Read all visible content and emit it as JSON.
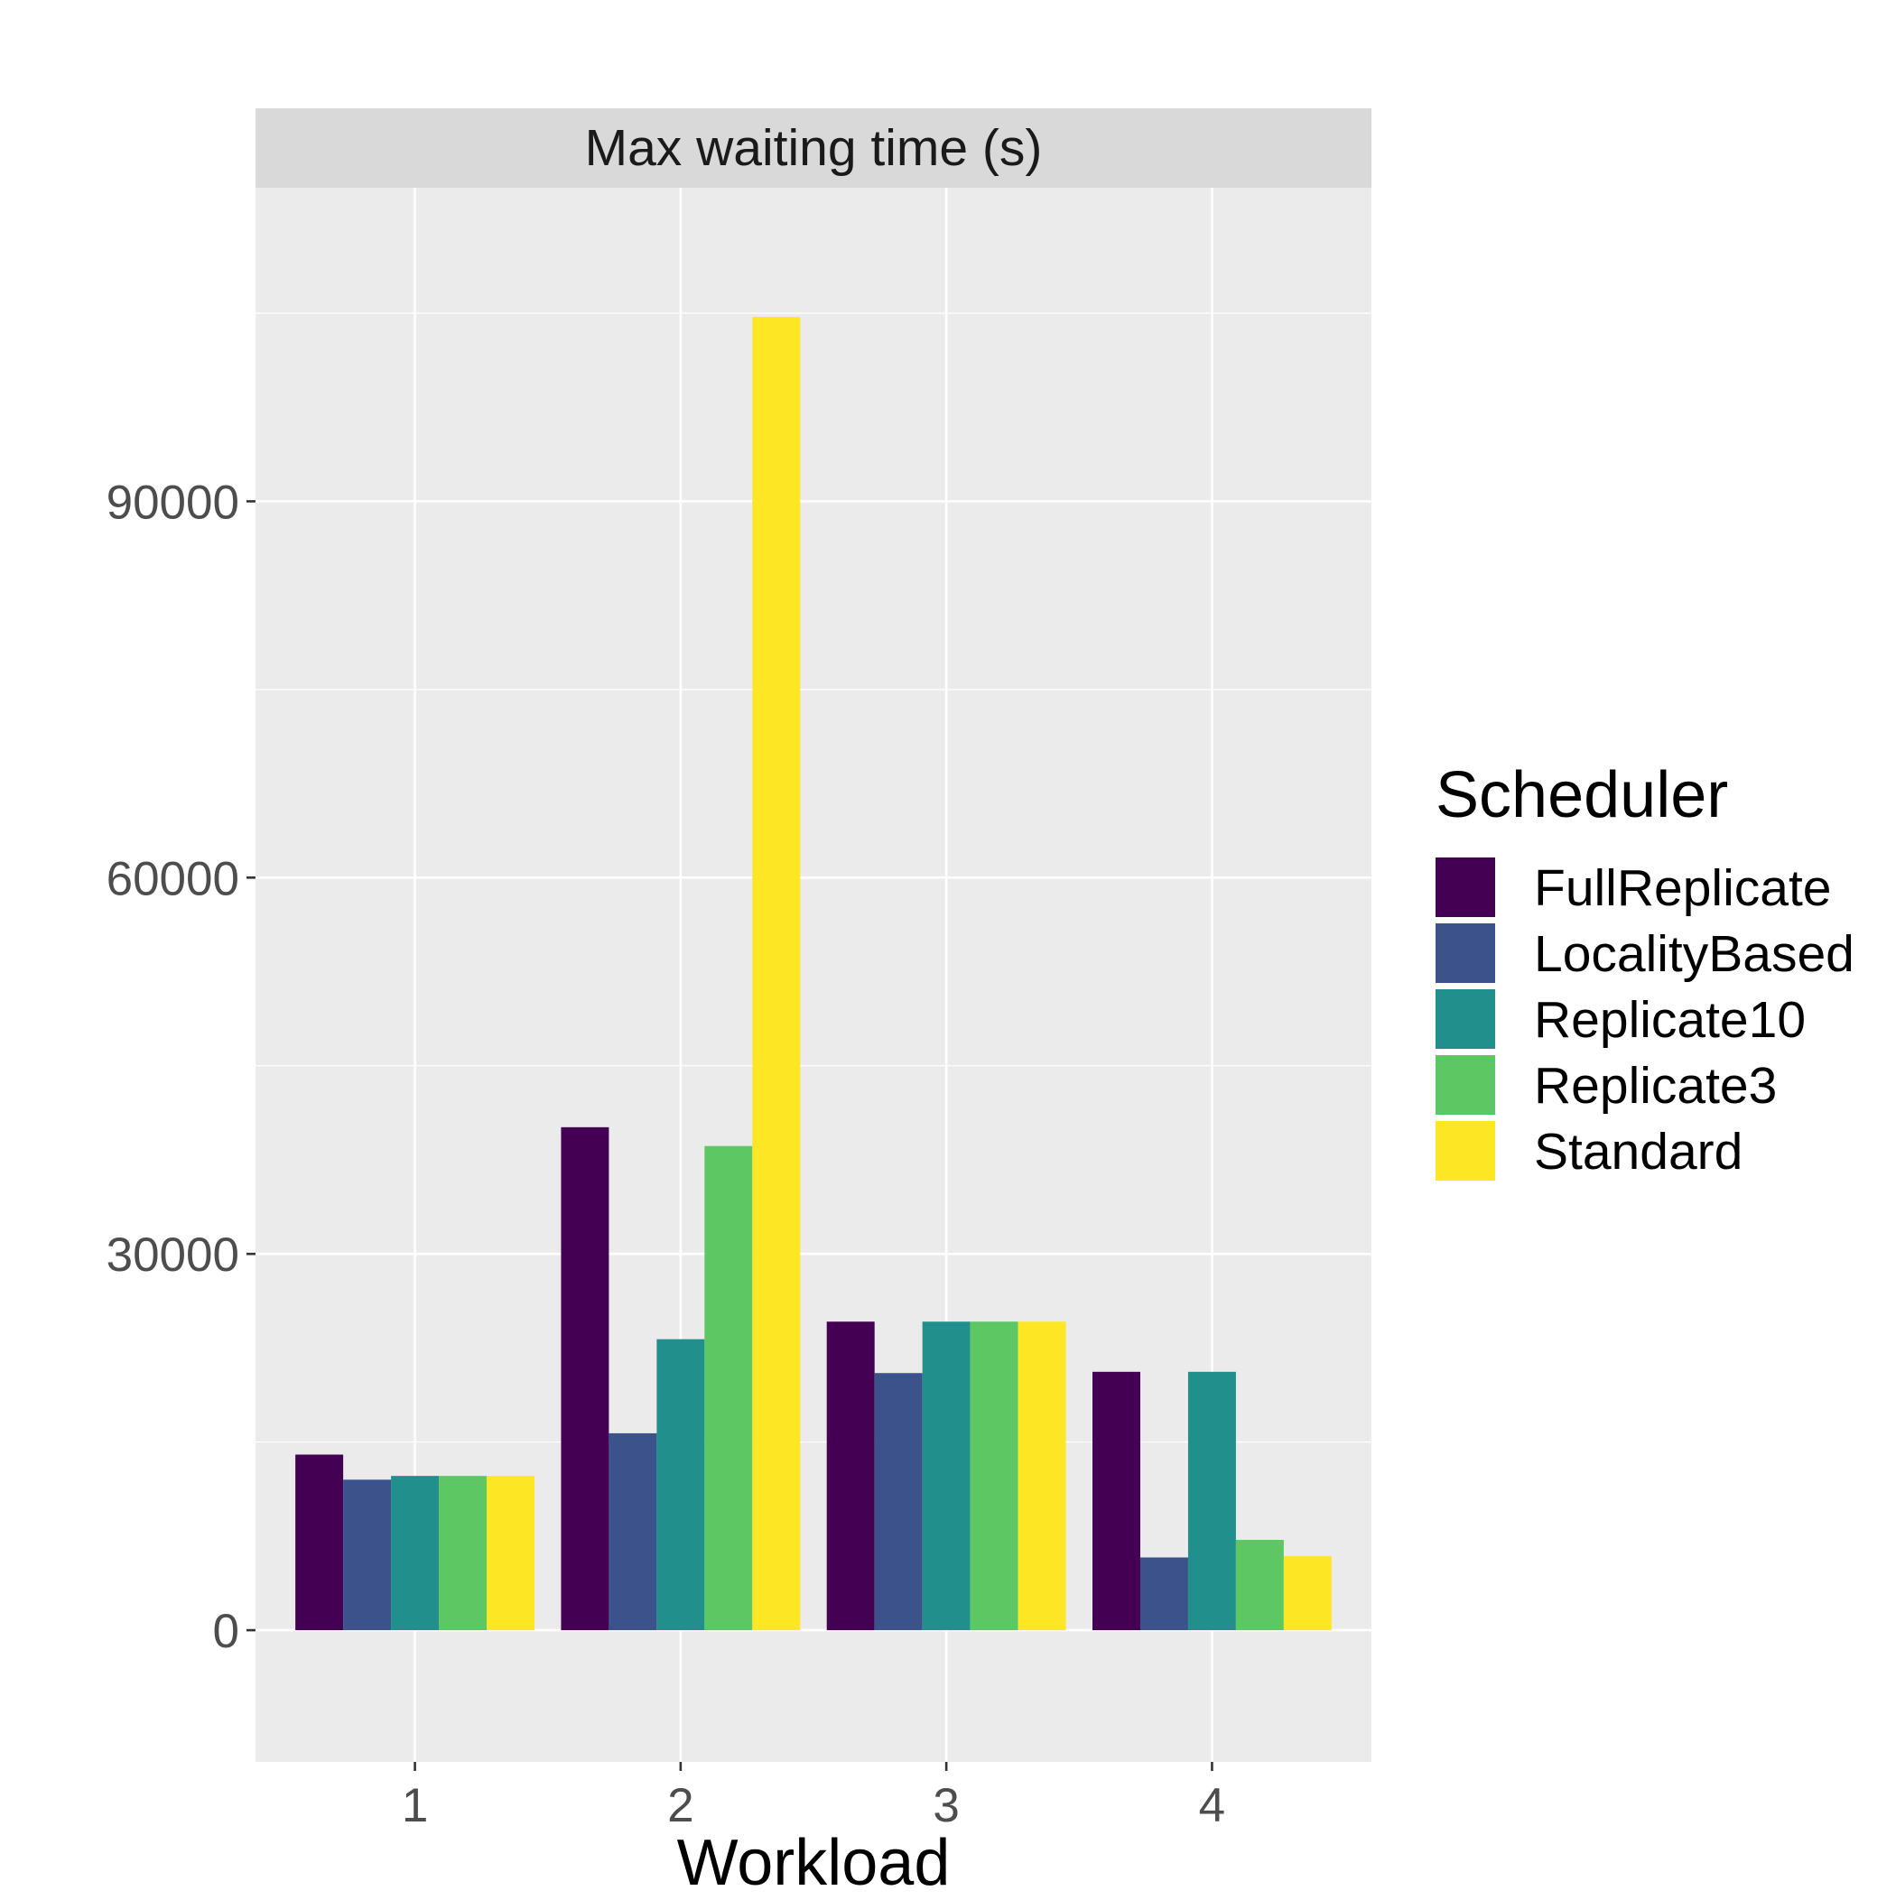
{
  "chart_data": {
    "type": "bar",
    "facet_title": "Max waiting time (s)",
    "xlabel": "Workload",
    "ylabel": "",
    "categories": [
      "1",
      "2",
      "3",
      "4"
    ],
    "yticks": [
      0,
      30000,
      60000,
      90000
    ],
    "ylim": [
      -10500,
      115000
    ],
    "grid": true,
    "legend": {
      "title": "Scheduler",
      "position": "right"
    },
    "series": [
      {
        "name": "FullReplicate",
        "color": "#440154",
        "values": [
          14000,
          40100,
          24600,
          20600
        ]
      },
      {
        "name": "LocalityBased",
        "color": "#3B528B",
        "values": [
          12000,
          15700,
          20500,
          5800
        ]
      },
      {
        "name": "Replicate10",
        "color": "#21908C",
        "values": [
          12300,
          23200,
          24600,
          20600
        ]
      },
      {
        "name": "Replicate3",
        "color": "#5DC863",
        "values": [
          12300,
          38600,
          24600,
          7200
        ]
      },
      {
        "name": "Standard",
        "color": "#FDE725",
        "values": [
          12300,
          104700,
          24600,
          5900
        ]
      }
    ]
  }
}
